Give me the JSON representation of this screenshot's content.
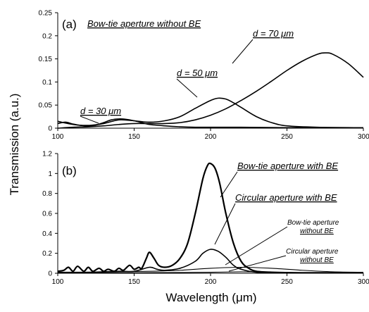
{
  "figure": {
    "ylabel": "Transmission (a.u.)",
    "xlabel": "Wavelength (μm)"
  },
  "chart_data": [
    {
      "type": "line",
      "panel_label": "(a)",
      "title": "Bow-tie aperture without BE",
      "xlim": [
        100,
        300
      ],
      "ylim": [
        0,
        0.25
      ],
      "x_ticks": [
        "100",
        "150",
        "200",
        "250",
        "300"
      ],
      "y_ticks": [
        "0",
        "0.05",
        "0.1",
        "0.15",
        "0.2",
        "0.25"
      ],
      "grid": false,
      "series": [
        {
          "name": "d = 30 μm",
          "x": [
            100,
            105,
            110,
            115,
            120,
            125,
            130,
            135,
            140,
            145,
            150,
            155,
            160,
            170,
            180,
            190,
            200,
            220,
            250,
            300
          ],
          "y": [
            0.01,
            0.013,
            0.009,
            0.006,
            0.005,
            0.007,
            0.012,
            0.018,
            0.02,
            0.019,
            0.016,
            0.012,
            0.008,
            0.005,
            0.003,
            0.002,
            0.002,
            0.002,
            0.001,
            0.001
          ]
        },
        {
          "name": "d = 50 μm",
          "x": [
            100,
            110,
            120,
            130,
            140,
            150,
            160,
            170,
            180,
            190,
            200,
            205,
            210,
            215,
            220,
            230,
            240,
            250,
            270,
            300
          ],
          "y": [
            0.015,
            0.008,
            0.006,
            0.01,
            0.018,
            0.016,
            0.013,
            0.016,
            0.025,
            0.043,
            0.06,
            0.065,
            0.063,
            0.055,
            0.045,
            0.025,
            0.012,
            0.005,
            0.002,
            0.001
          ]
        },
        {
          "name": "d = 70 μm",
          "x": [
            100,
            110,
            120,
            130,
            140,
            150,
            160,
            170,
            180,
            190,
            200,
            210,
            220,
            230,
            240,
            250,
            260,
            270,
            275,
            280,
            290,
            300
          ],
          "y": [
            0.0,
            0.002,
            0.003,
            0.005,
            0.008,
            0.01,
            0.01,
            0.01,
            0.012,
            0.018,
            0.028,
            0.042,
            0.06,
            0.08,
            0.102,
            0.125,
            0.145,
            0.16,
            0.163,
            0.16,
            0.14,
            0.11
          ]
        }
      ],
      "annotations": [
        "d = 30 μm",
        "d = 50 μm",
        "d = 70 μm"
      ]
    },
    {
      "type": "line",
      "panel_label": "(b)",
      "xlim": [
        100,
        300
      ],
      "ylim": [
        0,
        1.2
      ],
      "x_ticks": [
        "100",
        "150",
        "200",
        "250",
        "300"
      ],
      "y_ticks": [
        "0",
        "0.2",
        "0.4",
        "0.6",
        "0.8",
        "1",
        "1.2"
      ],
      "grid": false,
      "series": [
        {
          "name": "Bow-tie aperture with BE",
          "x": [
            100,
            104,
            107,
            110,
            113,
            117,
            120,
            123,
            127,
            130,
            133,
            137,
            140,
            143,
            147,
            150,
            153,
            155,
            158,
            160,
            163,
            166,
            170,
            175,
            180,
            185,
            190,
            195,
            198,
            200,
            203,
            206,
            210,
            215,
            220,
            225,
            230,
            240,
            260,
            300
          ],
          "y": [
            0.02,
            0.03,
            0.06,
            0.02,
            0.07,
            0.02,
            0.06,
            0.02,
            0.05,
            0.02,
            0.04,
            0.02,
            0.05,
            0.03,
            0.08,
            0.04,
            0.06,
            0.05,
            0.15,
            0.21,
            0.15,
            0.08,
            0.06,
            0.08,
            0.15,
            0.3,
            0.6,
            0.95,
            1.08,
            1.1,
            1.05,
            0.9,
            0.6,
            0.3,
            0.12,
            0.05,
            0.02,
            0.01,
            0.005,
            0.005
          ]
        },
        {
          "name": "Circular aperture with BE",
          "x": [
            100,
            120,
            140,
            150,
            160,
            165,
            170,
            180,
            190,
            195,
            200,
            205,
            210,
            215,
            220,
            230,
            250,
            300
          ],
          "y": [
            0.01,
            0.01,
            0.02,
            0.02,
            0.06,
            0.04,
            0.03,
            0.05,
            0.12,
            0.2,
            0.24,
            0.22,
            0.16,
            0.08,
            0.04,
            0.01,
            0.005,
            0.005
          ]
        },
        {
          "name": "Bow-tie aperture without BE",
          "x": [
            100,
            120,
            140,
            160,
            180,
            200,
            220,
            240,
            260,
            280,
            300
          ],
          "y": [
            0.01,
            0.01,
            0.015,
            0.02,
            0.03,
            0.05,
            0.06,
            0.05,
            0.03,
            0.015,
            0.01
          ]
        },
        {
          "name": "Circular aperture without BE",
          "x": [
            100,
            150,
            200,
            220,
            240,
            260,
            300
          ],
          "y": [
            0.005,
            0.005,
            0.01,
            0.015,
            0.01,
            0.005,
            0.005
          ]
        }
      ],
      "annotations": [
        "Bow-tie aperture with BE",
        "Circular aperture with BE",
        "Bow-tie aperture without BE",
        "Circular aperture without BE"
      ]
    }
  ]
}
